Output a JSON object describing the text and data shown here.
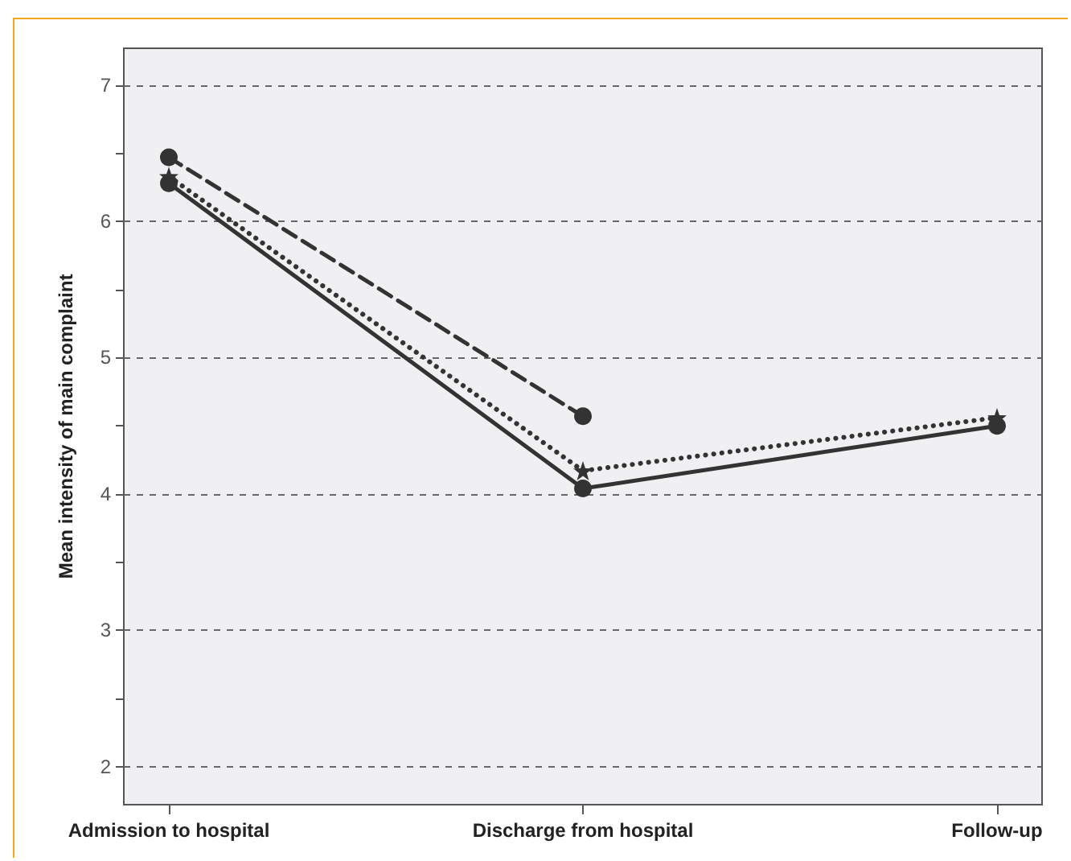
{
  "chart_data": {
    "type": "line",
    "ylabel": "Mean intensity of main complaint",
    "categories": [
      "Admission to hospital",
      "Discharge from hospital",
      "Follow-up"
    ],
    "series": [
      {
        "color": "#333333",
        "values": [
          6.47,
          4.57,
          null
        ],
        "marker": "circle",
        "line_style": "dashed"
      },
      {
        "color": "#333333",
        "values": [
          6.28,
          4.04,
          4.5
        ],
        "marker": "circle",
        "line_style": "solid"
      },
      {
        "color": "#333333",
        "values": [
          6.33,
          4.17,
          4.56
        ],
        "marker": "star",
        "line_style": "dotted"
      }
    ],
    "ylim": [
      1.72,
      7.27
    ],
    "yticks": [
      2,
      {
        "value": 2.5,
        "label": null
      },
      3,
      {
        "value": 3.5,
        "label": null
      },
      4,
      {
        "value": 4.5,
        "label": null
      },
      5,
      {
        "value": 5.5,
        "label": null
      },
      6,
      {
        "value": 6.5,
        "label": null
      },
      7
    ],
    "grid": "y"
  }
}
